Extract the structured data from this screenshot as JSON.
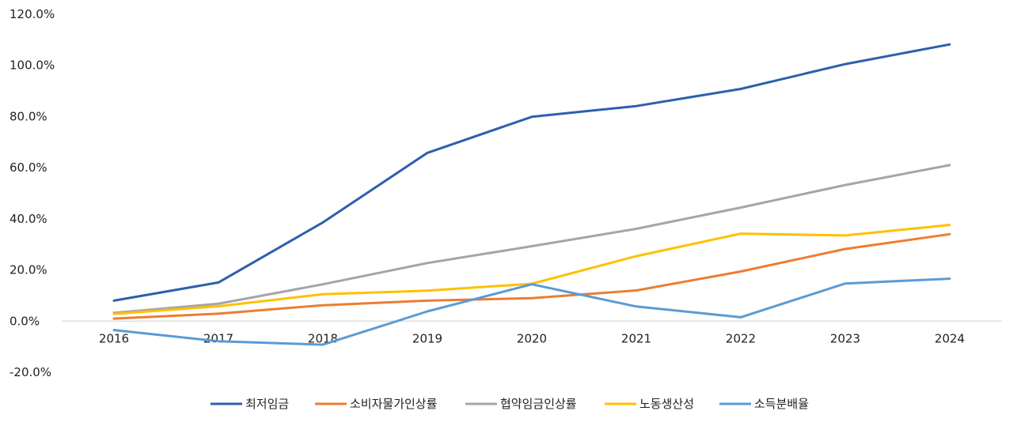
{
  "chart_data": {
    "type": "line",
    "categories": [
      "2016",
      "2017",
      "2018",
      "2019",
      "2020",
      "2021",
      "2022",
      "2023",
      "2024"
    ],
    "y_ticks": [
      "120.0%",
      "100.0%",
      "80.0%",
      "60.0%",
      "40.0%",
      "20.0%",
      "0.0%",
      "-20.0%"
    ],
    "ylim": [
      -20,
      120
    ],
    "y_unit": "%",
    "grid": false,
    "legend_position": "bottom",
    "series": [
      {
        "name": "최저임금",
        "color": "#2E5FAC",
        "values": [
          8.0,
          15.1,
          38.6,
          65.8,
          79.9,
          84.1,
          90.8,
          100.5,
          108.2
        ]
      },
      {
        "name": "소비자물가인상률",
        "color": "#ED7D31",
        "values": [
          1.0,
          2.9,
          6.2,
          8.0,
          9.0,
          12.0,
          19.4,
          28.2,
          34.0
        ]
      },
      {
        "name": "협약임금인상률",
        "color": "#A5A5A5",
        "values": [
          3.2,
          6.8,
          14.4,
          22.7,
          29.3,
          36.1,
          44.4,
          53.2,
          61.0
        ]
      },
      {
        "name": "노동생산성",
        "color": "#FFC000",
        "values": [
          2.8,
          5.8,
          10.5,
          11.9,
          14.6,
          25.4,
          34.2,
          33.5,
          37.6
        ]
      },
      {
        "name": "소득분배율",
        "color": "#5B9BD5",
        "values": [
          -3.5,
          -7.9,
          -9.2,
          3.8,
          14.4,
          5.7,
          1.5,
          14.7,
          16.6
        ]
      }
    ]
  }
}
